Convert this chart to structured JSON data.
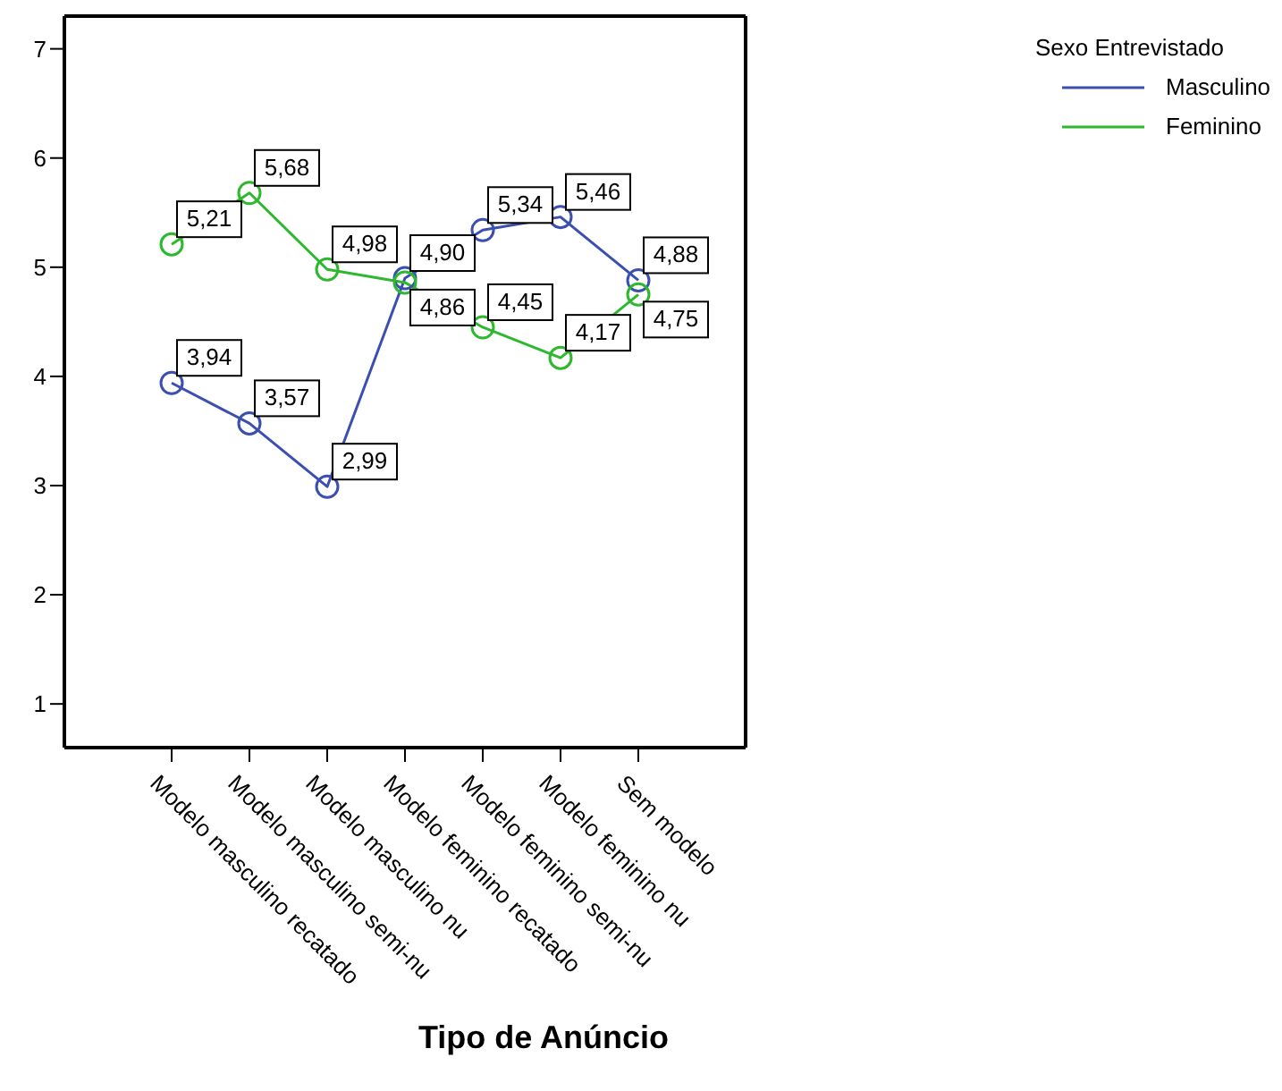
{
  "chart_data": {
    "type": "line",
    "xlabel": "Tipo de Anúncio",
    "legend_title": "Sexo Entrevistado",
    "categories": [
      "Modelo masculino recatado",
      "Modelo masculino semi-nu",
      "Modelo masculino nu",
      "Modelo feminino recatado",
      "Modelo feminino semi-nu",
      "Modelo feminino nu",
      "Sem modelo"
    ],
    "series": [
      {
        "name": "Masculino",
        "color": "#3b4fb0",
        "values": [
          3.94,
          3.57,
          2.99,
          4.9,
          5.34,
          5.46,
          4.88
        ],
        "value_labels": [
          "3,94",
          "3,57",
          "2,99",
          "4,90",
          "5,34",
          "5,46",
          "4,88"
        ]
      },
      {
        "name": "Feminino",
        "color": "#2eb82e",
        "values": [
          5.21,
          5.68,
          4.98,
          4.86,
          4.45,
          4.17,
          4.75
        ],
        "value_labels": [
          "5,21",
          "5,68",
          "4,98",
          "4,86",
          "4,45",
          "4,17",
          "4,75"
        ]
      }
    ],
    "ylim": [
      0.6,
      7.3
    ],
    "yticks": [
      1,
      2,
      3,
      4,
      5,
      6,
      7
    ],
    "grid": false,
    "legend": "top right",
    "marker": "circle",
    "line_style": "solid"
  }
}
